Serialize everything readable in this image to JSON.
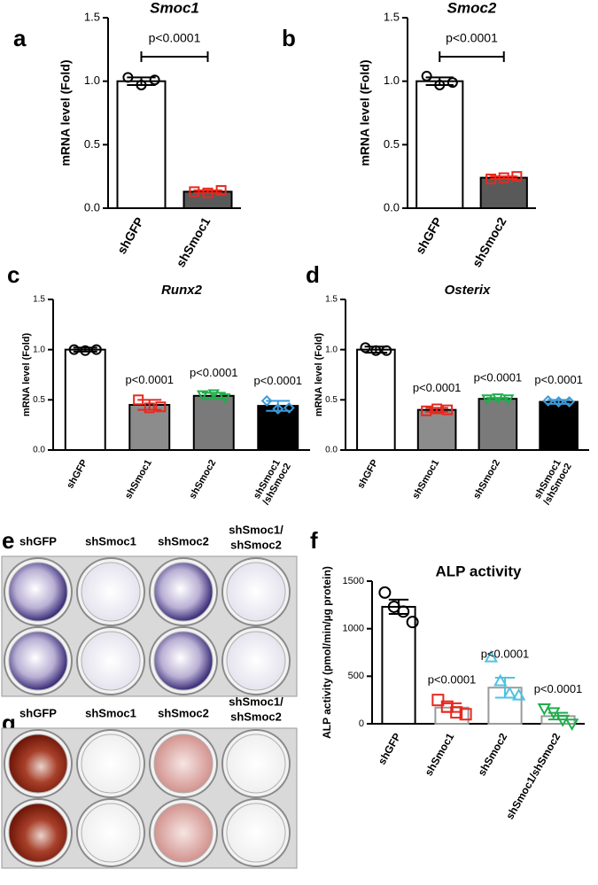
{
  "chart_data": [
    {
      "type": "bar",
      "panel": "a",
      "title": "Smoc1",
      "y_label": "mRNA level (Fold)",
      "categories": [
        "shGFP",
        "shSmoc1"
      ],
      "values": [
        1.0,
        0.13
      ],
      "errors": [
        0.03,
        0.01
      ],
      "points": [
        [
          1.03,
          0.97,
          1.01
        ],
        [
          0.13,
          0.12,
          0.14
        ]
      ],
      "bar_colors": [
        "#ffffff",
        "#595959"
      ],
      "bar_edges": [
        "#000000",
        "#000000"
      ],
      "point_colors": [
        "#000000",
        "#e8281e"
      ],
      "markers": [
        "circle",
        "square"
      ],
      "comparison_label": "p<0.0001",
      "ylim": [
        0,
        1.5
      ],
      "yticks": [
        {
          "value": 0,
          "label": "0.0"
        },
        0.5,
        {
          "value": 1,
          "label": "1.0"
        },
        1.5
      ]
    },
    {
      "type": "bar",
      "panel": "b",
      "title": "Smoc2",
      "y_label": "mRNA level (Fold)",
      "categories": [
        "shGFP",
        "shSmoc2"
      ],
      "values": [
        1.0,
        0.24
      ],
      "errors": [
        0.03,
        0.01
      ],
      "points": [
        [
          1.04,
          0.97,
          0.99
        ],
        [
          0.23,
          0.24,
          0.25
        ]
      ],
      "bar_colors": [
        "#ffffff",
        "#595959"
      ],
      "bar_edges": [
        "#000000",
        "#000000"
      ],
      "point_colors": [
        "#000000",
        "#e8281e"
      ],
      "markers": [
        "circle",
        "square"
      ],
      "comparison_label": "p<0.0001",
      "ylim": [
        0,
        1.5
      ],
      "yticks": [
        {
          "value": 0,
          "label": "0.0"
        },
        0.5,
        {
          "value": 1,
          "label": "1.0"
        },
        1.5
      ]
    },
    {
      "type": "bar",
      "panel": "c",
      "title": "Runx2",
      "y_label": "mRNA level (Fold)",
      "categories": [
        "shGFP",
        "shSmoc1",
        "shSmoc2",
        [
          "shSmoc1",
          "/shSmoc2"
        ]
      ],
      "values": [
        1.0,
        0.45,
        0.54,
        0.44
      ],
      "errors": [
        0.02,
        0.05,
        0.03,
        0.05
      ],
      "points": [
        [
          1.0,
          0.99,
          1.0
        ],
        [
          0.5,
          0.42,
          0.43
        ],
        [
          0.55,
          0.56,
          0.52
        ],
        [
          0.49,
          0.41,
          0.42
        ]
      ],
      "bar_colors": [
        "#ffffff",
        "#8c8c8c",
        "#7a7a7a",
        "#000000"
      ],
      "bar_edges": [
        "#000000",
        "#000000",
        "#000000",
        "#000000"
      ],
      "point_colors": [
        "#000000",
        "#e8281e",
        "#1fae4b",
        "#3a9ad9"
      ],
      "markers": [
        "circle",
        "square",
        "triangle-down",
        "diamond"
      ],
      "value_annotations": [
        null,
        "p<0.0001",
        "p<0.0001",
        "p<0.0001"
      ],
      "ylim": [
        0,
        1.5
      ],
      "yticks": [
        {
          "value": 0,
          "label": "0.0"
        },
        0.5,
        {
          "value": 1,
          "label": "1.0"
        },
        1.5
      ]
    },
    {
      "type": "bar",
      "panel": "d",
      "title": "Osterix",
      "y_label": "mRNA level (Fold)",
      "categories": [
        "shGFP",
        "shSmoc1",
        "shSmoc2",
        [
          "shSmoc1",
          "/shSmoc2"
        ]
      ],
      "values": [
        1.0,
        0.4,
        0.51,
        0.48
      ],
      "errors": [
        0.03,
        0.02,
        0.01,
        0.02
      ],
      "points": [
        [
          1.02,
          0.99,
          0.99
        ],
        [
          0.39,
          0.41,
          0.4
        ],
        [
          0.51,
          0.52,
          0.51
        ],
        [
          0.49,
          0.48,
          0.48
        ]
      ],
      "bar_colors": [
        "#ffffff",
        "#8c8c8c",
        "#7a7a7a",
        "#000000"
      ],
      "bar_edges": [
        "#000000",
        "#000000",
        "#000000",
        "#000000"
      ],
      "point_colors": [
        "#000000",
        "#e8281e",
        "#1fae4b",
        "#3a9ad9"
      ],
      "markers": [
        "circle",
        "square",
        "triangle-down",
        "diamond"
      ],
      "value_annotations": [
        null,
        "p<0.0001",
        "p<0.0001",
        "p<0.0001"
      ],
      "ylim": [
        0,
        1.5
      ],
      "yticks": [
        {
          "value": 0,
          "label": "0.0"
        },
        0.5,
        {
          "value": 1,
          "label": "1.0"
        },
        1.5
      ]
    },
    {
      "type": "bar",
      "panel": "f",
      "title": "ALP activity",
      "y_label": "ALP activity (pmol/min/µg protein)",
      "categories": [
        "shGFP",
        "shSmoc1",
        "shSmoc2",
        "shSmoc1/shSmoc2"
      ],
      "values": [
        1230,
        170,
        380,
        80
      ],
      "errors": [
        75,
        45,
        105,
        35
      ],
      "points": [
        [
          1380,
          1230,
          1180,
          1070
        ],
        [
          250,
          180,
          120,
          100
        ],
        [
          700,
          450,
          320,
          300
        ],
        [
          160,
          120,
          40,
          0
        ]
      ],
      "bar_colors": [
        "#ffffff",
        "#ffffff",
        "#ffffff",
        "#ffffff"
      ],
      "bar_edges": [
        "#000000",
        "#9a9a9a",
        "#9a9a9a",
        "#9a9a9a"
      ],
      "point_colors": [
        "#000000",
        "#e8281e",
        "#4fc3e0",
        "#1fae4b"
      ],
      "markers": [
        "circle",
        "square",
        "triangle",
        "triangle-down"
      ],
      "value_annotations": [
        null,
        "p<0.0001",
        "p<0.0001",
        "p<0.0001"
      ],
      "ylim": [
        0,
        1500
      ],
      "yticks": [
        0,
        500,
        1000,
        1500
      ]
    }
  ],
  "plates": [
    {
      "panel": "e",
      "labels": [
        "shGFP",
        "shSmoc1",
        "shSmoc2",
        [
          "shSmoc1/",
          "shSmoc2"
        ]
      ]
    },
    {
      "panel": "g",
      "labels": [
        "shGFP",
        "shSmoc1",
        "shSmoc2",
        [
          "shSmoc1/",
          "shSmoc2"
        ]
      ]
    }
  ]
}
